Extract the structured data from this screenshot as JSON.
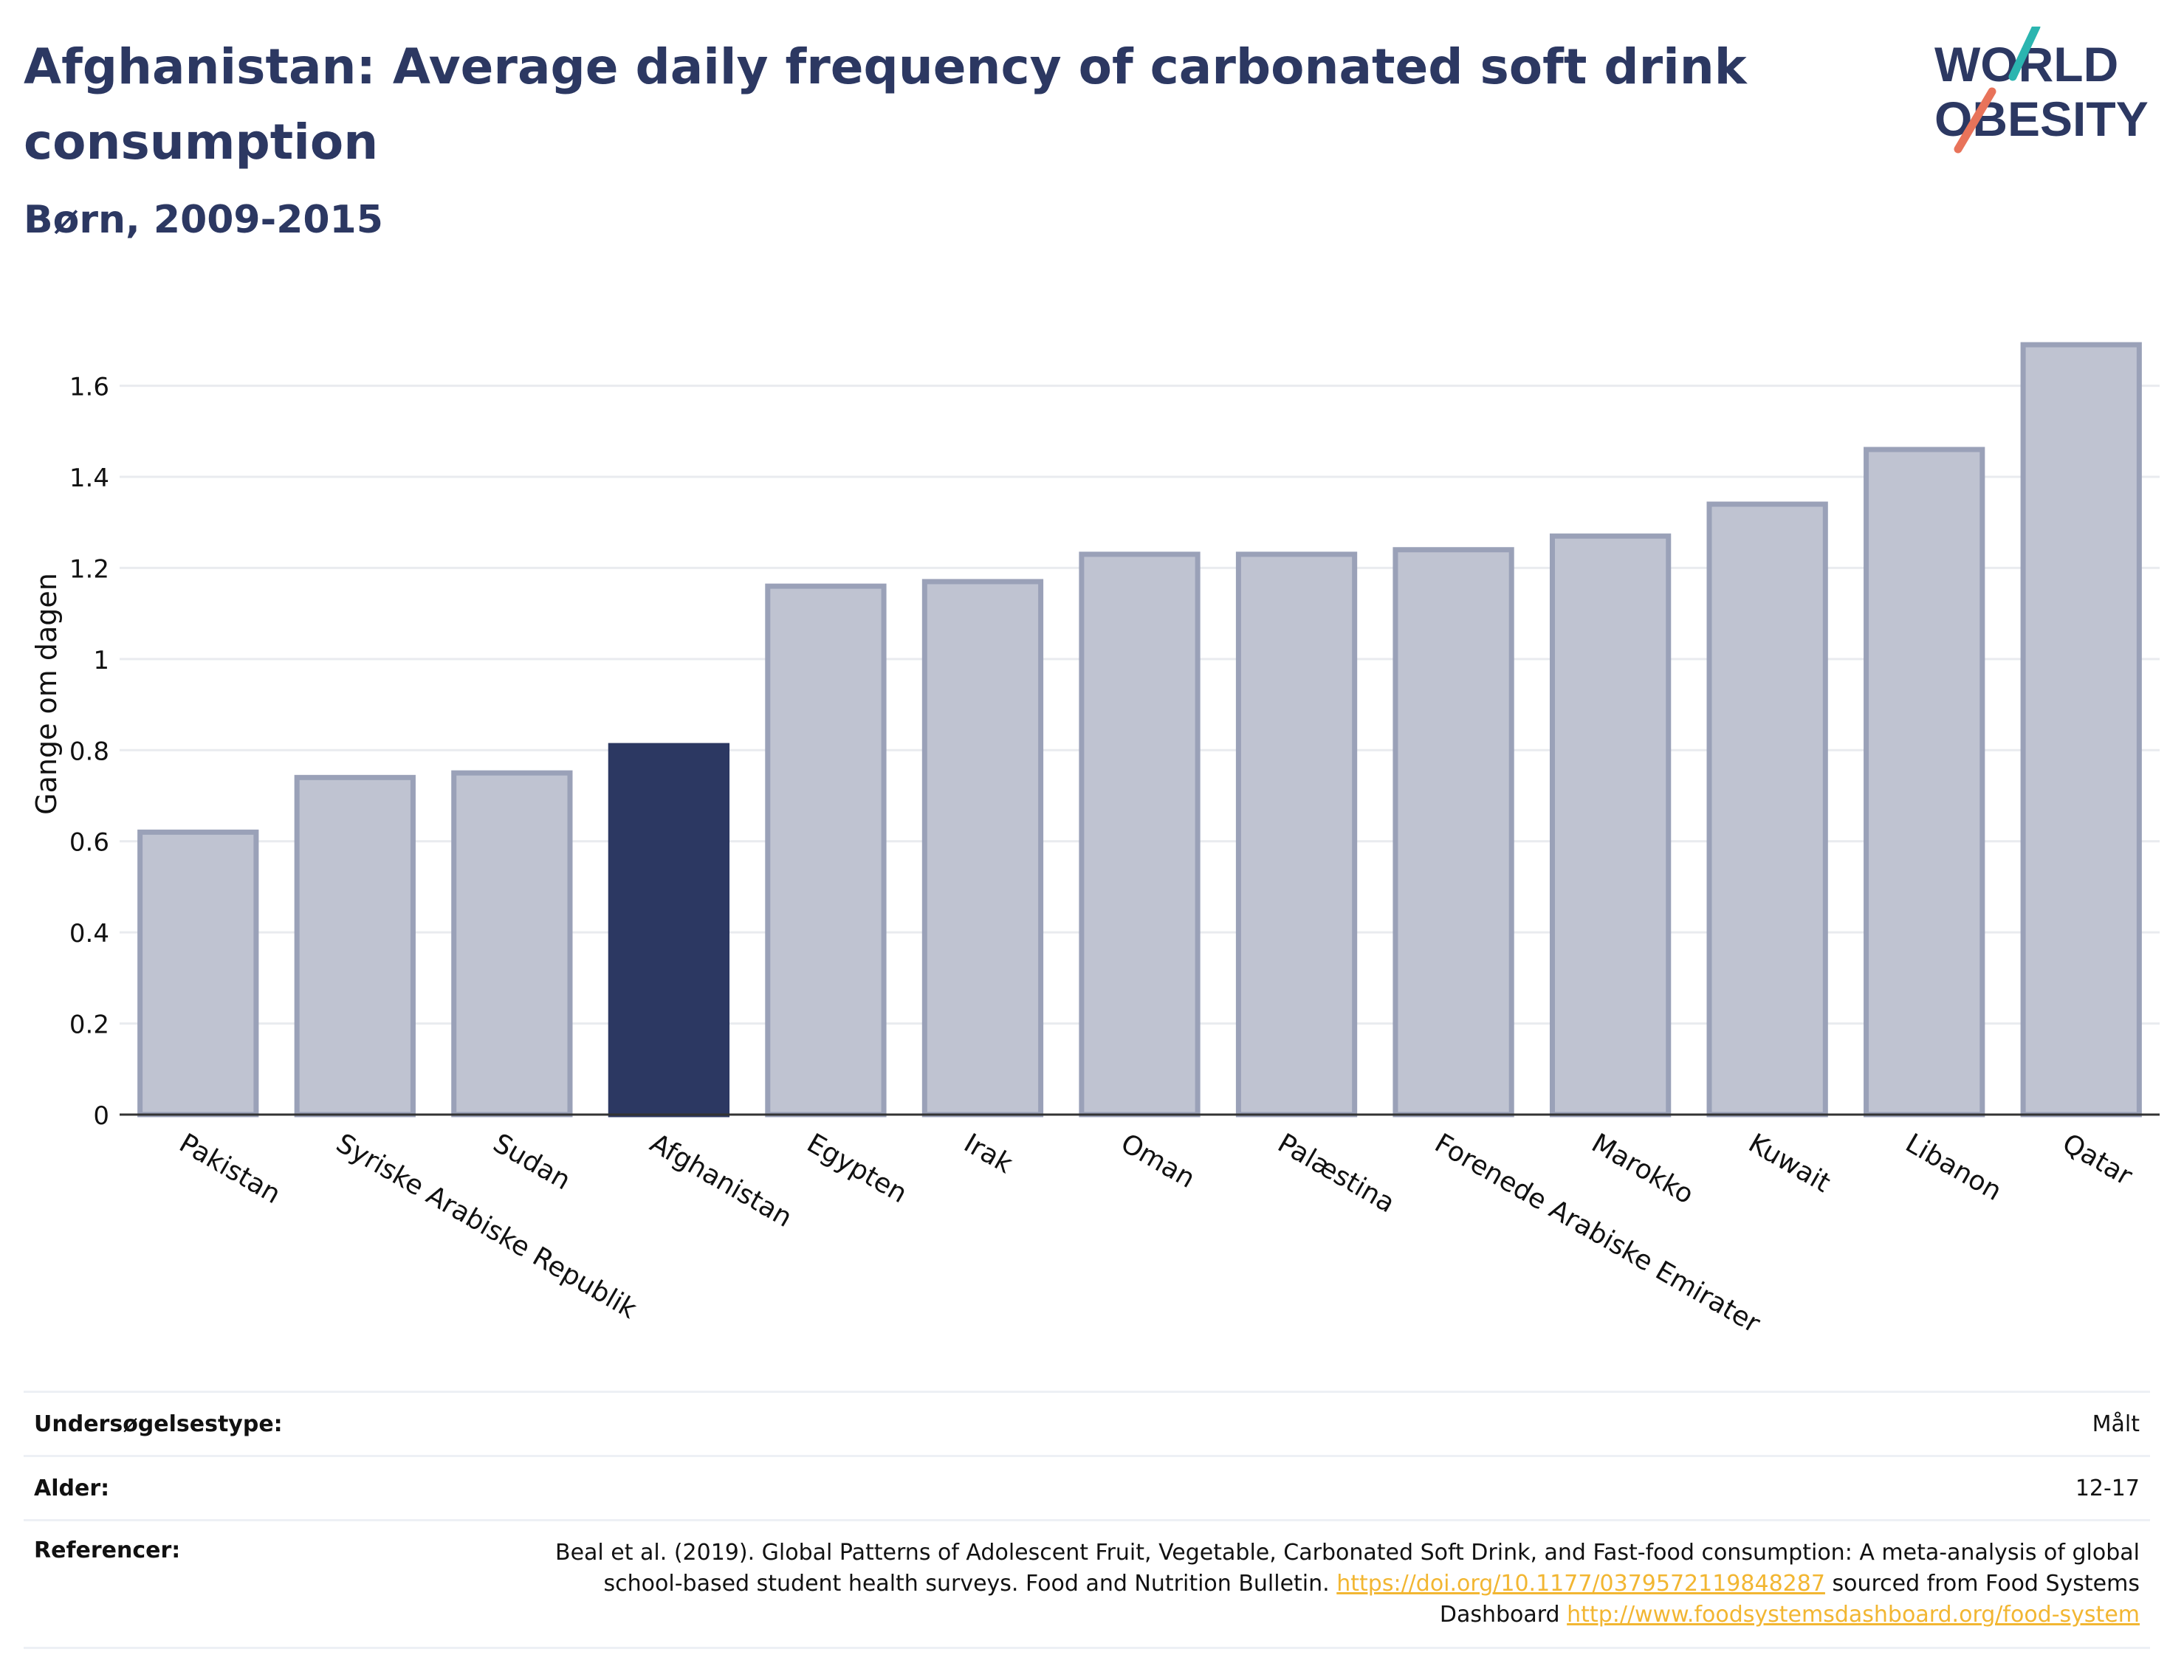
{
  "header": {
    "title": "Afghanistan: Average daily frequency of carbonated soft drink consumption",
    "subtitle": "Børn, 2009-2015"
  },
  "logo": {
    "line1": "WORLD",
    "line2": "OBESITY",
    "colors": {
      "text": "#2c3862",
      "slash_top": "#2bb5b0",
      "slash_bottom": "#e8735a"
    }
  },
  "colors": {
    "highlight": "#2c3862",
    "bar_fill": "#bfc3d1",
    "bar_stroke": "#9aa1b8",
    "grid": "#e9ebef",
    "axis": "#333333",
    "link": "#f2b632"
  },
  "chart_data": {
    "type": "bar",
    "categories": [
      "Pakistan",
      "Syriske Arabiske Republik",
      "Sudan",
      "Afghanistan",
      "Egypten",
      "Irak",
      "Oman",
      "Palæstina",
      "Forenede Arabiske Emirater",
      "Marokko",
      "Kuwait",
      "Libanon",
      "Qatar"
    ],
    "values": [
      0.62,
      0.74,
      0.75,
      0.81,
      1.16,
      1.17,
      1.23,
      1.23,
      1.24,
      1.27,
      1.34,
      1.46,
      1.69
    ],
    "highlight": "Afghanistan",
    "ylabel": "Gange om dagen",
    "ylim": [
      0,
      1.75
    ],
    "yticks": [
      0,
      0.2,
      0.4,
      0.6,
      0.8,
      1,
      1.2,
      1.4,
      1.6
    ],
    "ytick_labels": [
      "0",
      "0.2",
      "0.4",
      "0.6",
      "0.8",
      "1",
      "1.2",
      "1.4",
      "1.6"
    ],
    "grid": true,
    "legend": "none"
  },
  "info": {
    "survey_label": "Undersøgelsestype:",
    "survey_value": "Målt",
    "age_label": "Alder:",
    "age_value": "12-17",
    "ref_label": "Referencer:",
    "ref_text1": "Beal et al. (2019). Global Patterns of Adolescent Fruit, Vegetable, Carbonated Soft Drink, and Fast-food consumption: A meta-analysis of global school-based student health surveys. Food and Nutrition Bulletin.",
    "ref_link1": "https://doi.org/10.1177/0379572119848287",
    "ref_text2": "sourced from Food Systems Dashboard",
    "ref_link2": "http://www.foodsystemsdashboard.org/food-system"
  }
}
